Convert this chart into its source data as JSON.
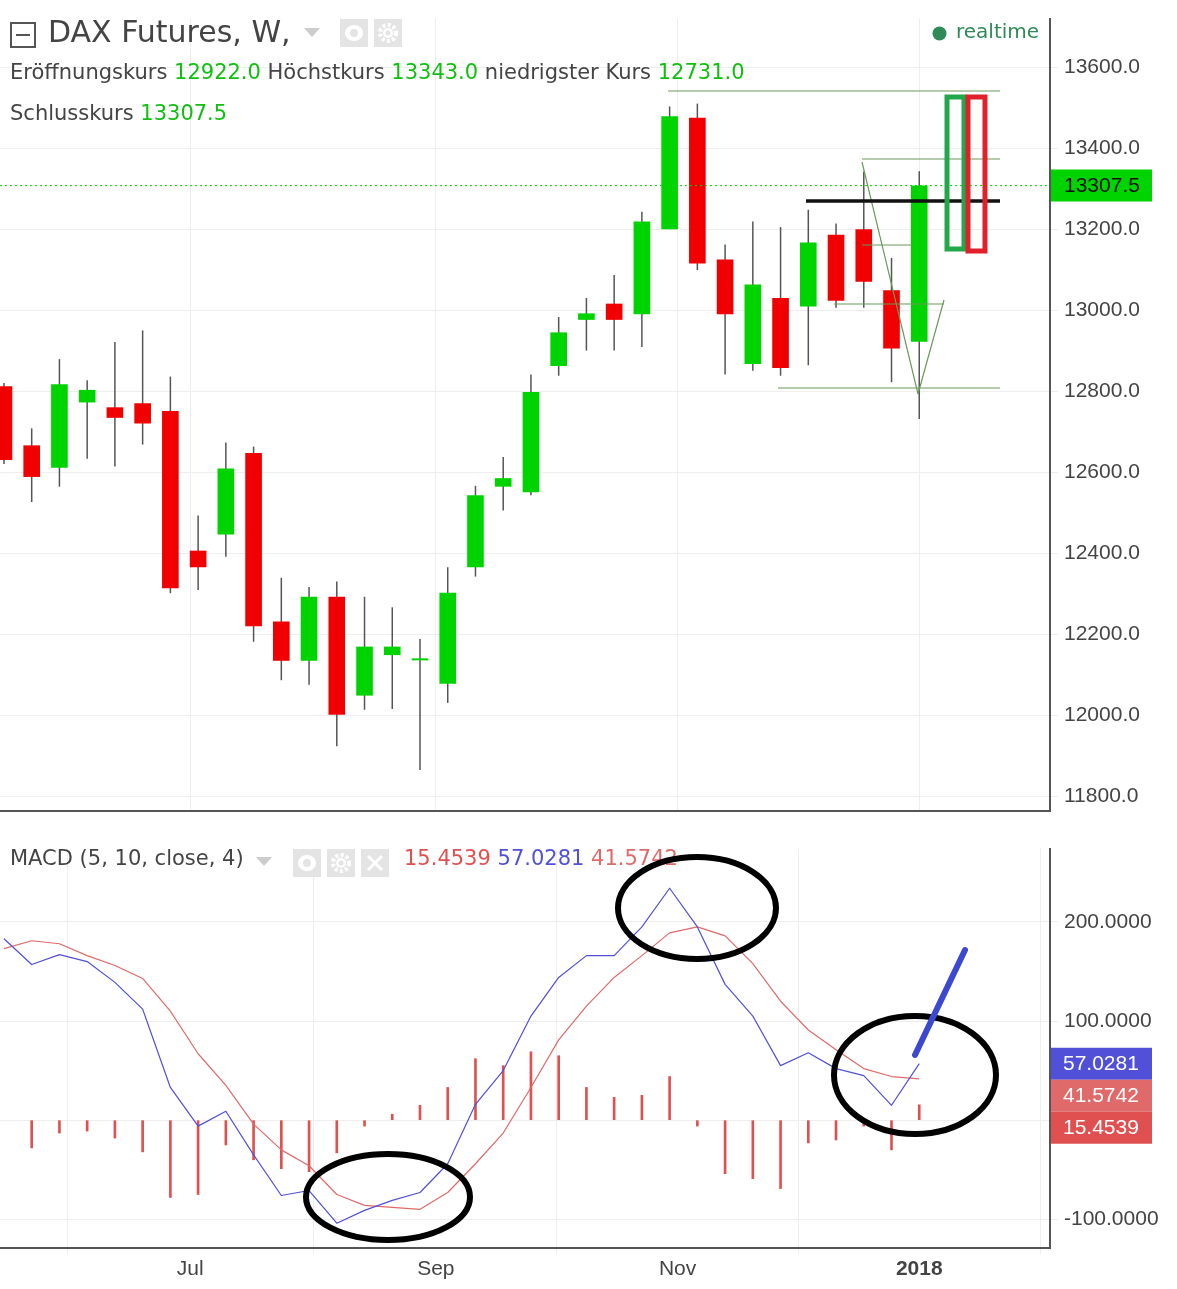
{
  "chart_data": [
    {
      "type": "candlestick",
      "title": "DAX Futures, W,",
      "annotations": [
        "Eröffnungskurs 12922.0 Höchstkurs 13343.0 niedrigster Kurs 12731.0",
        "Schlusskurs 13307.5",
        "realtime"
      ],
      "x": [
        "2017-05-15",
        "2017-05-22",
        "2017-05-29",
        "2017-06-05",
        "2017-06-12",
        "2017-06-19",
        "2017-06-26",
        "2017-07-03",
        "2017-07-10",
        "2017-07-17",
        "2017-07-24",
        "2017-07-31",
        "2017-08-07",
        "2017-08-14",
        "2017-08-21",
        "2017-08-28",
        "2017-09-04",
        "2017-09-11",
        "2017-09-18",
        "2017-09-25",
        "2017-10-02",
        "2017-10-09",
        "2017-10-16",
        "2017-10-23",
        "2017-10-30",
        "2017-11-06",
        "2017-11-13",
        "2017-11-20",
        "2017-11-27",
        "2017-12-04",
        "2017-12-11",
        "2017-12-18",
        "2017-12-25",
        "2018-01-01"
      ],
      "ohlc": [
        [
          12812,
          12820,
          12620,
          12630
        ],
        [
          12666,
          12708,
          12526,
          12588
        ],
        [
          12611,
          12879,
          12564,
          12817
        ],
        [
          12772,
          12827,
          12633,
          12803
        ],
        [
          12760,
          12921,
          12614,
          12734
        ],
        [
          12770,
          12950,
          12668,
          12720
        ],
        [
          12751,
          12836,
          12301,
          12313
        ],
        [
          12406,
          12493,
          12309,
          12365
        ],
        [
          12446,
          12673,
          12391,
          12609
        ],
        [
          12647,
          12663,
          12181,
          12219
        ],
        [
          12231,
          12339,
          12086,
          12134
        ],
        [
          12134,
          12316,
          12075,
          12292
        ],
        [
          12292,
          12330,
          11923,
          12001
        ],
        [
          12048,
          12292,
          12013,
          12169
        ],
        [
          12148,
          12266,
          12015,
          12169
        ],
        [
          12138,
          12188,
          11864,
          12140
        ],
        [
          12077,
          12365,
          12030,
          12302
        ],
        [
          12365,
          12566,
          12342,
          12543
        ],
        [
          12564,
          12637,
          12505,
          12585
        ],
        [
          12550,
          12841,
          12543,
          12798
        ],
        [
          12862,
          12983,
          12838,
          12945
        ],
        [
          12976,
          13030,
          12900,
          12992
        ],
        [
          13016,
          13087,
          12900,
          12976
        ],
        [
          12990,
          13243,
          12909,
          13219
        ],
        [
          13200,
          13503,
          13200,
          13479
        ],
        [
          13475,
          13510,
          13099,
          13115
        ],
        [
          13125,
          13162,
          12841,
          12990
        ],
        [
          12867,
          13219,
          12850,
          13063
        ],
        [
          13030,
          13205,
          12838,
          12857
        ],
        [
          13009,
          13248,
          12864,
          13167
        ],
        [
          13186,
          13214,
          13006,
          13023
        ],
        [
          13200,
          13342,
          13006,
          13070
        ],
        [
          13049,
          13129,
          12822,
          12905
        ],
        [
          12922,
          13343,
          12731,
          13307.5
        ]
      ],
      "colors": [
        "#f00000",
        "#f00000",
        "#00d400",
        "#00d400",
        "#f00000",
        "#f00000",
        "#f00000",
        "#f00000",
        "#00d400",
        "#f00000",
        "#f00000",
        "#00d400",
        "#f00000",
        "#00d400",
        "#00d400",
        "#00d400",
        "#00d400",
        "#00d400",
        "#00d400",
        "#00d400",
        "#00d400",
        "#00d400",
        "#f00000",
        "#00d400",
        "#00d400",
        "#f00000",
        "#f00000",
        "#00d400",
        "#f00000",
        "#00d400",
        "#f00000",
        "#f00000",
        "#f00000",
        "#00d400"
      ],
      "xlim": [
        "2017-05-14",
        "2018-02-03"
      ],
      "xticks": [
        {
          "value": "2017-07-01",
          "label": null
        },
        {
          "value": "2017-09-01",
          "label": null
        },
        {
          "value": "2017-11-01",
          "label": null
        },
        {
          "value": "2018-01-01",
          "label": null
        }
      ],
      "ylim": [
        11762,
        13720
      ],
      "yticks": [
        {
          "value": 11800,
          "label": "11800.0"
        },
        {
          "value": 12000,
          "label": "12000.0"
        },
        {
          "value": 12200,
          "label": "12200.0"
        },
        {
          "value": 12400,
          "label": "12400.0"
        },
        {
          "value": 12600,
          "label": "12600.0"
        },
        {
          "value": 12800,
          "label": "12800.0"
        },
        {
          "value": 13000,
          "label": "13000.0"
        },
        {
          "value": 13200,
          "label": "13200.0"
        },
        {
          "value": 13400,
          "label": "13400.0"
        },
        {
          "value": 13600,
          "label": "13600.0"
        }
      ],
      "ref_lines": [
        {
          "axis": "y",
          "value": 13307.5,
          "label": "13307.5",
          "color": "#00d400",
          "line_style": "dotted"
        }
      ],
      "tick_labels": "y",
      "grid": true
    },
    {
      "type": "line",
      "title": "MACD (5, 10, close, 4)",
      "x": [
        "2017-05-15",
        "2017-05-22",
        "2017-05-29",
        "2017-06-05",
        "2017-06-12",
        "2017-06-19",
        "2017-06-26",
        "2017-07-03",
        "2017-07-10",
        "2017-07-17",
        "2017-07-24",
        "2017-07-31",
        "2017-08-07",
        "2017-08-14",
        "2017-08-21",
        "2017-08-28",
        "2017-09-04",
        "2017-09-11",
        "2017-09-18",
        "2017-09-25",
        "2017-10-02",
        "2017-10-09",
        "2017-10-16",
        "2017-10-23",
        "2017-10-30",
        "2017-11-06",
        "2017-11-13",
        "2017-11-20",
        "2017-11-27",
        "2017-12-04",
        "2017-12-11",
        "2017-12-18",
        "2017-12-25",
        "2018-01-01"
      ],
      "series": [
        {
          "type": "bar",
          "color": "#e05050",
          "values": [
            null,
            -28,
            -13,
            -11,
            -18,
            -32,
            -78,
            -75,
            -25,
            -40,
            -49,
            -52,
            -33,
            -6,
            6,
            15,
            33,
            62,
            55,
            69,
            65,
            33,
            23,
            25,
            44,
            -6,
            -54,
            -59,
            -69,
            -23,
            -20,
            -6,
            -30,
            15.4539
          ]
        },
        {
          "type": "line",
          "color": "#5050d8",
          "values": [
            183,
            157,
            167,
            160,
            139,
            112,
            33,
            -6,
            9,
            -35,
            -76,
            -71,
            -104,
            -91,
            -81,
            -73,
            -44,
            16,
            50,
            105,
            144,
            166,
            166,
            195,
            234,
            195,
            137,
            105,
            55,
            68,
            52,
            45,
            15,
            57.0281
          ]
        },
        {
          "type": "line",
          "color": "#e06a6a",
          "values": [
            173,
            181,
            178,
            166,
            156,
            143,
            110,
            67,
            35,
            -4,
            -30,
            -46,
            -75,
            -86,
            -88,
            -90,
            -73,
            -44,
            -13,
            33,
            81,
            115,
            144,
            166,
            189,
            195,
            186,
            158,
            120,
            91,
            71,
            52,
            44,
            41.5742
          ]
        }
      ],
      "annotations": [
        "15.4539",
        "57.0281",
        "41.5742",
        "15.4539",
        "57.0281",
        "41.5742"
      ],
      "xlim": [
        "2017-05-14",
        "2018-02-03"
      ],
      "xticks": [
        {
          "value": "2017-07-01",
          "label": "Jul"
        },
        {
          "value": "2017-09-01",
          "label": "Sep"
        },
        {
          "value": "2017-11-01",
          "label": "Nov"
        },
        {
          "value": "2018-01-01",
          "label": "2018"
        }
      ],
      "ylim": [
        -129,
        274
      ],
      "yticks": [
        {
          "value": -100,
          "label": "-100.0000"
        },
        {
          "value": 0,
          "label": null
        },
        {
          "value": 100,
          "label": "100.0000"
        },
        {
          "value": 200,
          "label": "200.0000"
        }
      ],
      "grid": true
    }
  ]
}
